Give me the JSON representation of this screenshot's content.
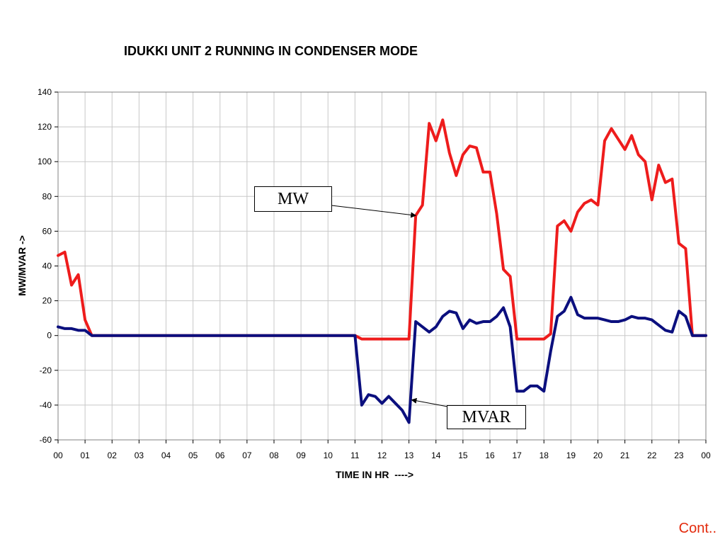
{
  "colors": {
    "mw_line": "#ee1c1c",
    "mvar_line": "#0b0f7e",
    "grid": "#c8c8c8",
    "plot_border": "#808080",
    "cont_text": "#e32a0c"
  },
  "footer": {
    "cont_label": "Cont.."
  },
  "chart_data": {
    "type": "line",
    "title": "IDUKKI UNIT 2 RUNNING IN CONDENSER MODE",
    "xlabel": "TIME IN HR  ---->",
    "ylabel": "MW/MVAR ->",
    "xlim": [
      0,
      24
    ],
    "ylim": [
      -60,
      140
    ],
    "grid": true,
    "x_tick_labels": [
      "00",
      "01",
      "02",
      "03",
      "04",
      "05",
      "06",
      "07",
      "08",
      "09",
      "10",
      "11",
      "12",
      "13",
      "14",
      "15",
      "16",
      "17",
      "18",
      "19",
      "20",
      "21",
      "22",
      "23",
      "00"
    ],
    "y_ticks": [
      -60,
      -40,
      -20,
      0,
      20,
      40,
      60,
      80,
      100,
      120,
      140
    ],
    "x": [
      0,
      0.25,
      0.5,
      0.75,
      1,
      1.25,
      1.5,
      1.75,
      2,
      2.25,
      2.5,
      2.75,
      3,
      3.25,
      3.5,
      3.75,
      4,
      4.25,
      4.5,
      4.75,
      5,
      5.25,
      5.5,
      5.75,
      6,
      6.25,
      6.5,
      6.75,
      7,
      7.25,
      7.5,
      7.75,
      8,
      8.25,
      8.5,
      8.75,
      9,
      9.25,
      9.5,
      9.75,
      10,
      10.25,
      10.5,
      10.75,
      11,
      11.25,
      11.5,
      11.75,
      12,
      12.25,
      12.5,
      12.75,
      13,
      13.25,
      13.5,
      13.75,
      14,
      14.25,
      14.5,
      14.75,
      15,
      15.25,
      15.5,
      15.75,
      16,
      16.25,
      16.5,
      16.75,
      17,
      17.25,
      17.5,
      17.75,
      18,
      18.25,
      18.5,
      18.75,
      19,
      19.25,
      19.5,
      19.75,
      20,
      20.25,
      20.5,
      20.75,
      21,
      21.25,
      21.5,
      21.75,
      22,
      22.25,
      22.5,
      22.75,
      23,
      23.25,
      23.5,
      23.75,
      24
    ],
    "series": [
      {
        "name": "MW",
        "values": [
          46,
          48,
          29,
          35,
          9,
          0,
          0,
          0,
          0,
          0,
          0,
          0,
          0,
          0,
          0,
          0,
          0,
          0,
          0,
          0,
          0,
          0,
          0,
          0,
          0,
          0,
          0,
          0,
          0,
          0,
          0,
          0,
          0,
          0,
          0,
          0,
          0,
          0,
          0,
          0,
          0,
          0,
          0,
          0,
          0,
          -2,
          -2,
          -2,
          -2,
          -2,
          -2,
          -2,
          -2,
          69,
          75,
          122,
          112,
          124,
          105,
          92,
          104,
          109,
          108,
          94,
          94,
          70,
          38,
          34,
          -2,
          -2,
          -2,
          -2,
          -2,
          1,
          63,
          66,
          60,
          71,
          76,
          78,
          75,
          112,
          119,
          113,
          107,
          115,
          104,
          100,
          78,
          98,
          88,
          90,
          53,
          50,
          0,
          0,
          0
        ]
      },
      {
        "name": "MVAR",
        "values": [
          5,
          4,
          4,
          3,
          3,
          0,
          0,
          0,
          0,
          0,
          0,
          0,
          0,
          0,
          0,
          0,
          0,
          0,
          0,
          0,
          0,
          0,
          0,
          0,
          0,
          0,
          0,
          0,
          0,
          0,
          0,
          0,
          0,
          0,
          0,
          0,
          0,
          0,
          0,
          0,
          0,
          0,
          0,
          0,
          0,
          -40,
          -34,
          -35,
          -39,
          -35,
          -39,
          -43,
          -50,
          8,
          5,
          2,
          5,
          11,
          14,
          13,
          4,
          9,
          7,
          8,
          8,
          11,
          16,
          5,
          -32,
          -32,
          -29,
          -29,
          -32,
          -9,
          11,
          14,
          22,
          12,
          10,
          10,
          10,
          9,
          8,
          8,
          9,
          11,
          10,
          10,
          9,
          6,
          3,
          2,
          14,
          11,
          0,
          0,
          0
        ]
      }
    ],
    "annotations": [
      {
        "text": "MW",
        "series": "MW",
        "x": 13.25,
        "y": 69
      },
      {
        "text": "MVAR",
        "series": "MVAR",
        "x": 13.1,
        "y": -37
      }
    ]
  }
}
